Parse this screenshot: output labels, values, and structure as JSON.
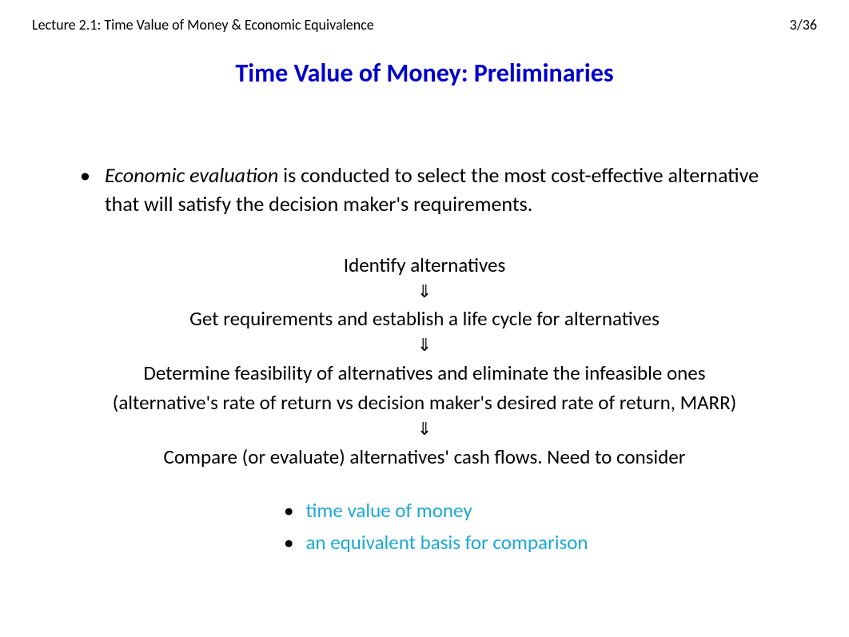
{
  "header": {
    "lecture": "Lecture 2.1: Time Value of Money & Economic Equivalence",
    "page": "3/36"
  },
  "title": "Time Value of Money: Preliminaries",
  "main_bullet": {
    "italic_lead": "Economic evaluation",
    "rest": " is conducted to select the most cost-effective alternative that will satisfy the decision maker's requirements."
  },
  "flow": {
    "step1": "Identify alternatives",
    "arrow": "⇓",
    "step2": "Get requirements and establish a life cycle for alternatives",
    "step3_line1": "Determine feasibility of alternatives and eliminate the infeasible ones",
    "step3_line2": "(alternative's rate of return vs decision maker's desired rate of return, MARR)",
    "step4": "Compare (or evaluate) alternatives' cash flows. Need to consider"
  },
  "sub_bullets": {
    "item1": "time value of money",
    "item2": "an equivalent basis for comparison"
  },
  "colors": {
    "title_color": "#0000cc",
    "cyan_color": "#1ba8d4",
    "text_color": "#000000",
    "bg_color": "#ffffff"
  }
}
